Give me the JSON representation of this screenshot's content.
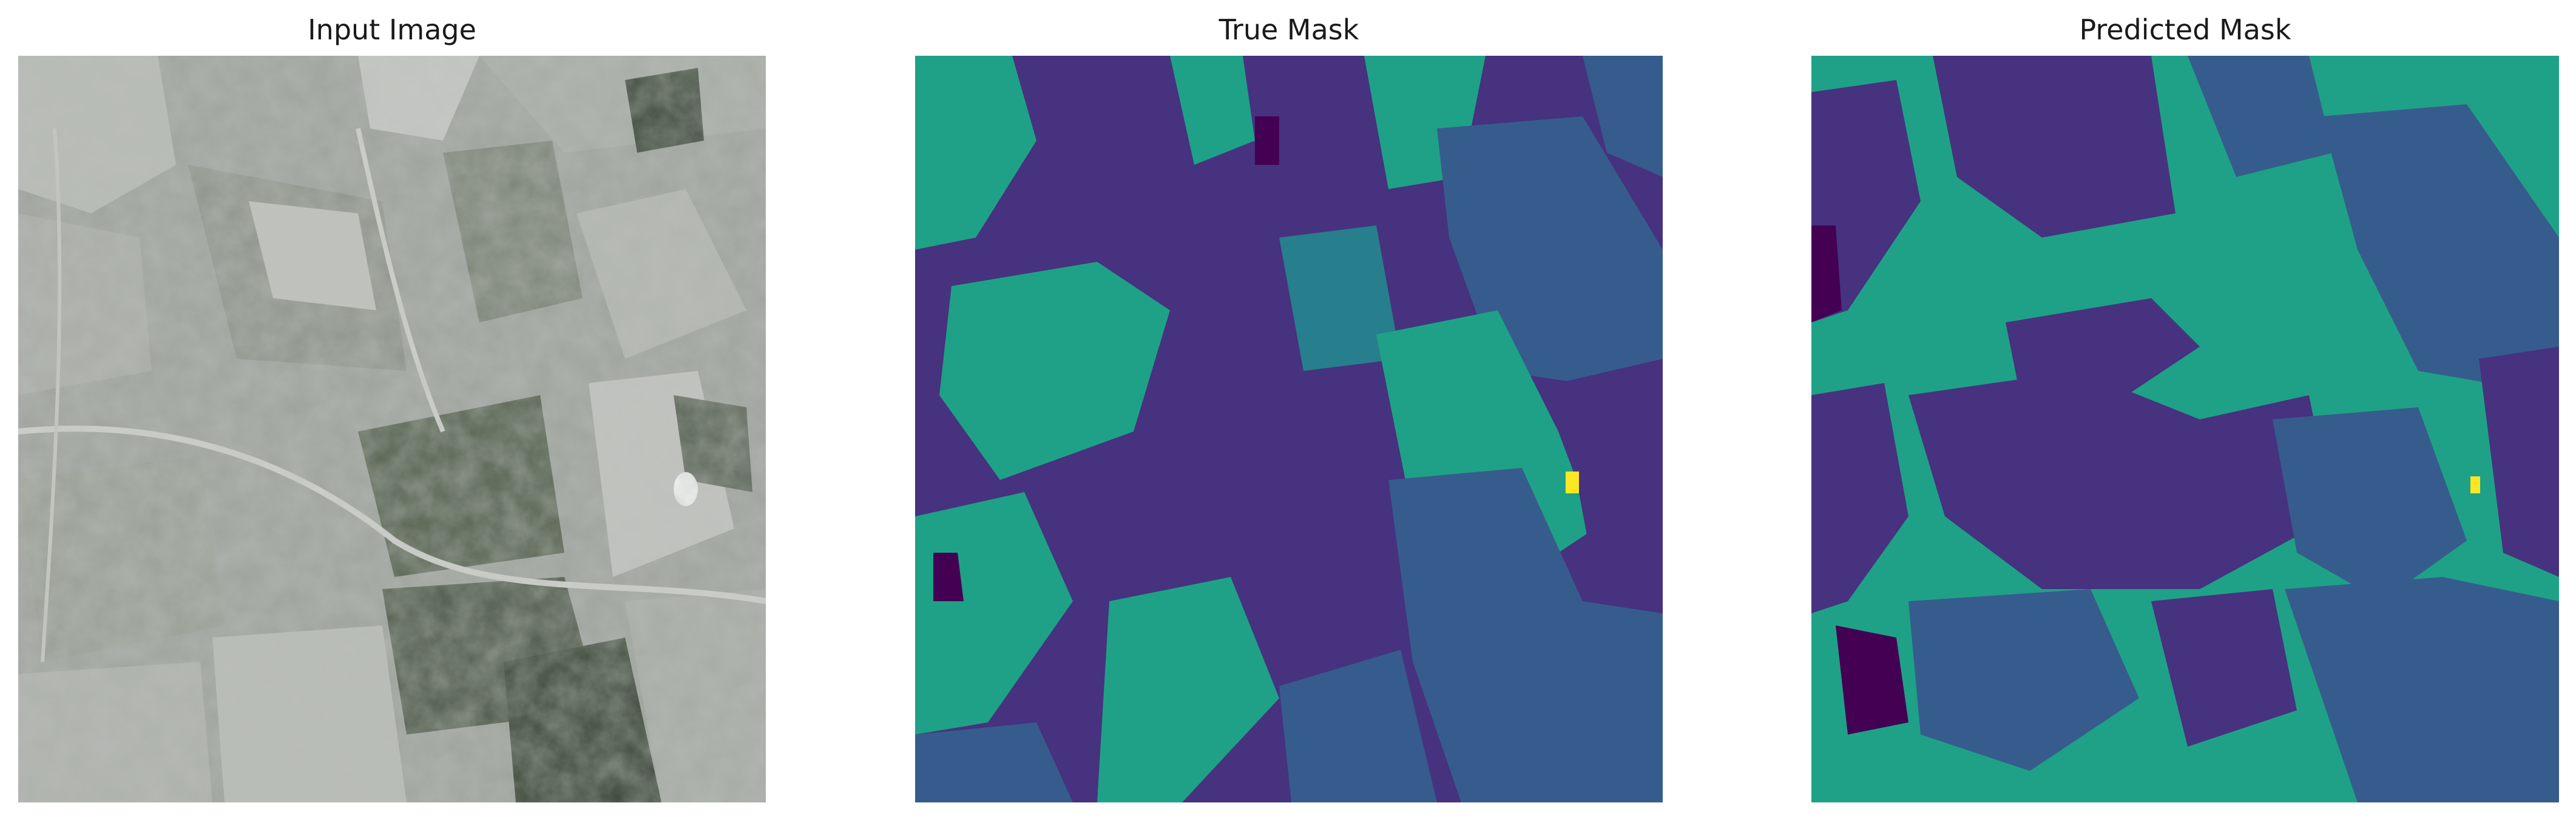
{
  "panels": {
    "input": {
      "title": "Input Image"
    },
    "true_mask": {
      "title": "True Mask"
    },
    "predicted_mask": {
      "title": "Predicted Mask"
    }
  },
  "colors": {
    "class0": "#440154",
    "class1": "#46327e",
    "class2": "#365c8d",
    "class3": "#277f8e",
    "class4": "#1fa187",
    "class5": "#fde725"
  }
}
